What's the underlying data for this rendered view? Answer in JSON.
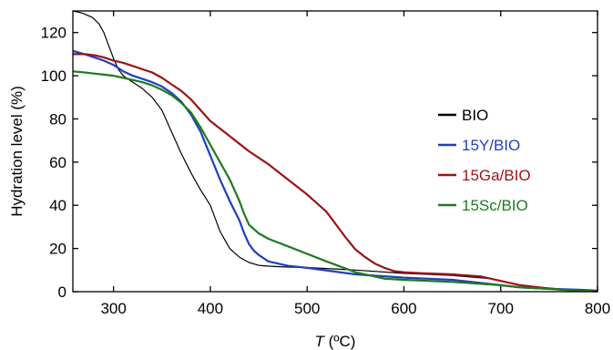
{
  "chart_data": {
    "type": "line",
    "title": "",
    "xlabel_italic": "T",
    "xlabel_rest": " (ºC)",
    "ylabel": "Hydration level (%)",
    "xlim": [
      258,
      800
    ],
    "ylim": [
      0,
      130
    ],
    "xticks": [
      300,
      400,
      500,
      600,
      700,
      800
    ],
    "yticks": [
      0,
      20,
      40,
      60,
      80,
      100,
      120
    ],
    "grid": false,
    "legend_position": "right",
    "series": [
      {
        "name": "BIO",
        "color": "#000000",
        "stroke_width": 1.2,
        "x": [
          258,
          268,
          278,
          285,
          290,
          295,
          300,
          305,
          310,
          320,
          330,
          340,
          350,
          360,
          370,
          380,
          390,
          400,
          405,
          410,
          415,
          420,
          425,
          430,
          440,
          450,
          460,
          480,
          500,
          550,
          600,
          650,
          690,
          700,
          710,
          720,
          740,
          760,
          780,
          800
        ],
        "y": [
          130,
          129,
          127,
          124,
          120,
          114,
          108,
          103,
          100,
          97,
          94,
          90,
          84,
          74,
          64,
          55,
          47,
          40,
          34,
          28,
          24,
          20,
          18,
          16,
          13.5,
          12.2,
          11.8,
          11.4,
          11.2,
          10,
          8.5,
          7.5,
          6,
          5,
          4,
          3,
          2,
          1.3,
          0.8,
          0.5
        ]
      },
      {
        "name": "15Y/BIO",
        "color": "#1f3fbf",
        "stroke_width": 2.2,
        "x": [
          258,
          270,
          280,
          290,
          300,
          310,
          320,
          330,
          340,
          350,
          360,
          370,
          380,
          390,
          400,
          410,
          420,
          430,
          435,
          440,
          445,
          450,
          460,
          480,
          500,
          550,
          600,
          650,
          700,
          720,
          740,
          760,
          780,
          800
        ],
        "y": [
          111.5,
          110,
          108.5,
          107,
          105,
          102,
          100,
          98.5,
          97,
          95,
          92,
          88,
          82,
          74,
          63,
          52,
          42,
          33,
          27,
          22,
          19,
          17,
          14,
          12,
          11,
          8,
          6.5,
          5.5,
          3,
          2,
          1.5,
          1.2,
          0.9,
          0.5
        ]
      },
      {
        "name": "15Ga/BIO",
        "color": "#9a1414",
        "stroke_width": 2.2,
        "x": [
          258,
          270,
          280,
          290,
          300,
          310,
          320,
          330,
          340,
          350,
          360,
          370,
          380,
          390,
          400,
          420,
          440,
          460,
          480,
          500,
          520,
          530,
          540,
          550,
          560,
          570,
          580,
          590,
          600,
          620,
          650,
          680,
          700,
          720,
          740,
          760,
          780,
          800
        ],
        "y": [
          110,
          110,
          109.5,
          108.5,
          107,
          106,
          104.5,
          103,
          101.5,
          99,
          96,
          93,
          89,
          84,
          79,
          72,
          65,
          59,
          52,
          45,
          37,
          31,
          25,
          19.5,
          16,
          13,
          11,
          9.5,
          9,
          8.5,
          8,
          7,
          5,
          3,
          2,
          1,
          0.5,
          0.3
        ]
      },
      {
        "name": "15Sc/BIO",
        "color": "#1f7a1f",
        "stroke_width": 2.2,
        "x": [
          258,
          270,
          280,
          290,
          300,
          310,
          320,
          330,
          340,
          350,
          360,
          370,
          380,
          390,
          400,
          410,
          420,
          430,
          435,
          440,
          450,
          460,
          480,
          500,
          520,
          550,
          580,
          600,
          650,
          700,
          720,
          740,
          760,
          780,
          800
        ],
        "y": [
          102,
          101.5,
          101,
          100.5,
          100,
          99,
          98,
          97,
          95.5,
          93.5,
          91,
          87.5,
          83,
          76,
          68,
          60,
          52,
          42,
          36,
          31,
          27,
          24.5,
          21,
          17.5,
          14,
          9,
          6,
          5.5,
          4.5,
          3,
          2,
          1.5,
          1,
          0.5,
          0.2
        ]
      }
    ]
  }
}
